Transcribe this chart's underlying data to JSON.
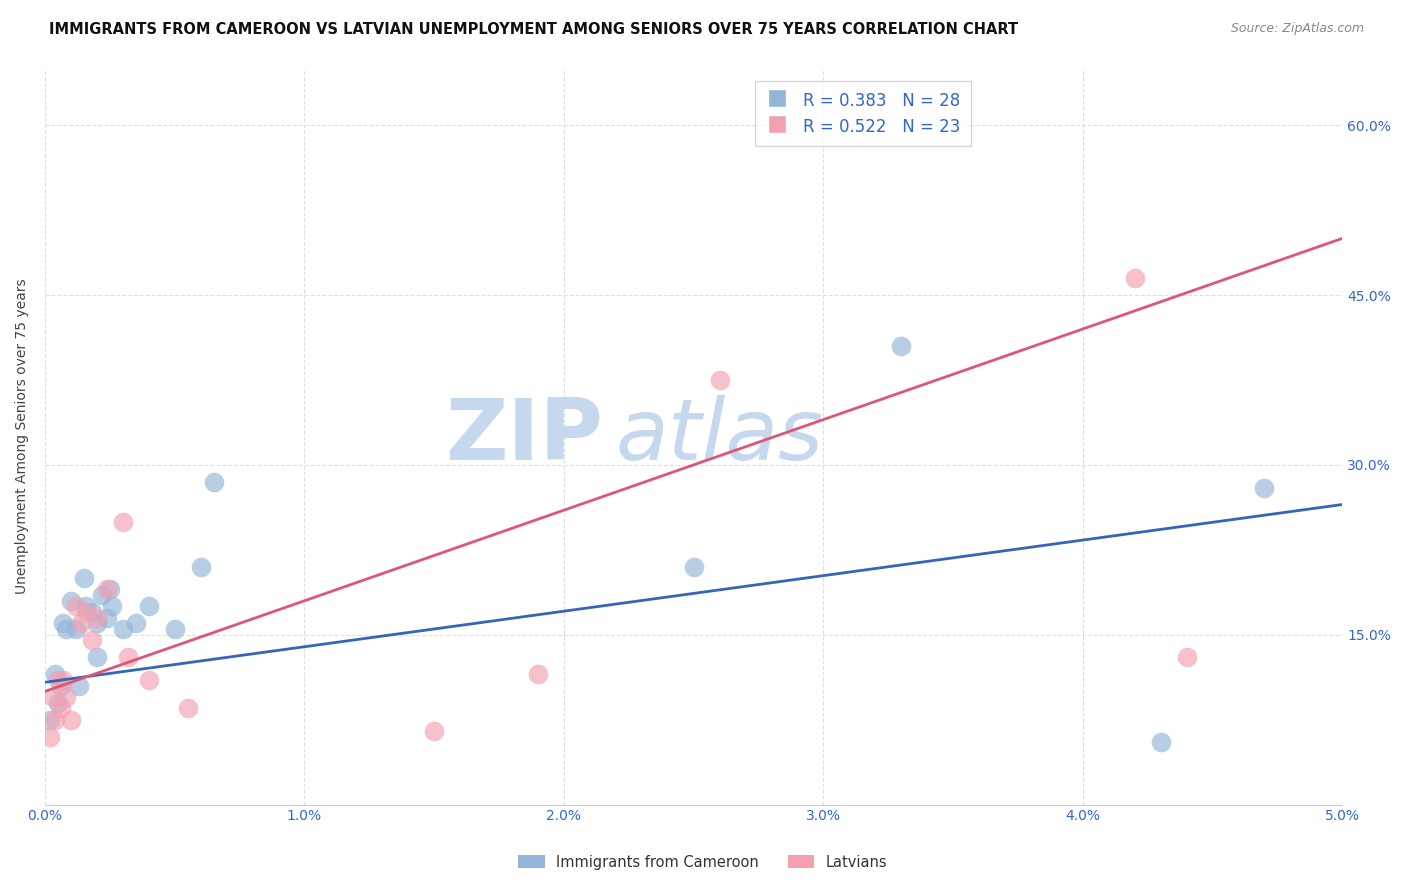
{
  "title": "IMMIGRANTS FROM CAMEROON VS LATVIAN UNEMPLOYMENT AMONG SENIORS OVER 75 YEARS CORRELATION CHART",
  "source": "Source: ZipAtlas.com",
  "ylabel": "Unemployment Among Seniors over 75 years",
  "xlim": [
    0.0,
    0.05
  ],
  "ylim": [
    0.0,
    0.65
  ],
  "xticks": [
    0.0,
    0.01,
    0.02,
    0.03,
    0.04,
    0.05
  ],
  "xticklabels": [
    "0.0%",
    "1.0%",
    "2.0%",
    "3.0%",
    "4.0%",
    "5.0%"
  ],
  "yticks": [
    0.0,
    0.15,
    0.3,
    0.45,
    0.6
  ],
  "yticklabels": [
    "",
    "15.0%",
    "30.0%",
    "45.0%",
    "60.0%"
  ],
  "blue_scatter_x": [
    0.0002,
    0.0004,
    0.0005,
    0.0006,
    0.0007,
    0.0008,
    0.001,
    0.0012,
    0.0013,
    0.0015,
    0.0016,
    0.0018,
    0.002,
    0.002,
    0.0022,
    0.0024,
    0.0025,
    0.0026,
    0.003,
    0.0035,
    0.004,
    0.005,
    0.006,
    0.0065,
    0.025,
    0.033,
    0.043,
    0.047
  ],
  "blue_scatter_y": [
    0.075,
    0.115,
    0.09,
    0.105,
    0.16,
    0.155,
    0.18,
    0.155,
    0.105,
    0.2,
    0.175,
    0.17,
    0.16,
    0.13,
    0.185,
    0.165,
    0.19,
    0.175,
    0.155,
    0.16,
    0.175,
    0.155,
    0.21,
    0.285,
    0.21,
    0.405,
    0.055,
    0.28
  ],
  "pink_scatter_x": [
    0.0002,
    0.0003,
    0.0004,
    0.0005,
    0.0006,
    0.0007,
    0.0008,
    0.001,
    0.0012,
    0.0014,
    0.0016,
    0.0018,
    0.002,
    0.0024,
    0.003,
    0.0032,
    0.004,
    0.0055,
    0.015,
    0.019,
    0.026,
    0.042,
    0.044
  ],
  "pink_scatter_y": [
    0.06,
    0.095,
    0.075,
    0.11,
    0.085,
    0.11,
    0.095,
    0.075,
    0.175,
    0.16,
    0.17,
    0.145,
    0.165,
    0.19,
    0.25,
    0.13,
    0.11,
    0.085,
    0.065,
    0.115,
    0.375,
    0.465,
    0.13
  ],
  "blue_line_x": [
    0.0,
    0.05
  ],
  "blue_line_y": [
    0.108,
    0.265
  ],
  "pink_line_x": [
    0.0,
    0.05
  ],
  "pink_line_y": [
    0.1,
    0.5
  ],
  "legend_blue_r": "R = 0.383",
  "legend_blue_n": "N = 28",
  "legend_pink_r": "R = 0.522",
  "legend_pink_n": "N = 23",
  "legend_blue_label": "Immigrants from Cameroon",
  "legend_pink_label": "Latvians",
  "blue_color": "#92B4D8",
  "pink_color": "#F4A0B0",
  "blue_line_color": "#3366BB",
  "pink_line_color": "#E05575",
  "title_color": "#111111",
  "source_color": "#888888",
  "tick_color": "#3366CC",
  "watermark_zip_color": "#C8D8EE",
  "watermark_atlas_color": "#C8D8EE",
  "grid_color": "#DDDDEE",
  "background_color": "#FFFFFF"
}
